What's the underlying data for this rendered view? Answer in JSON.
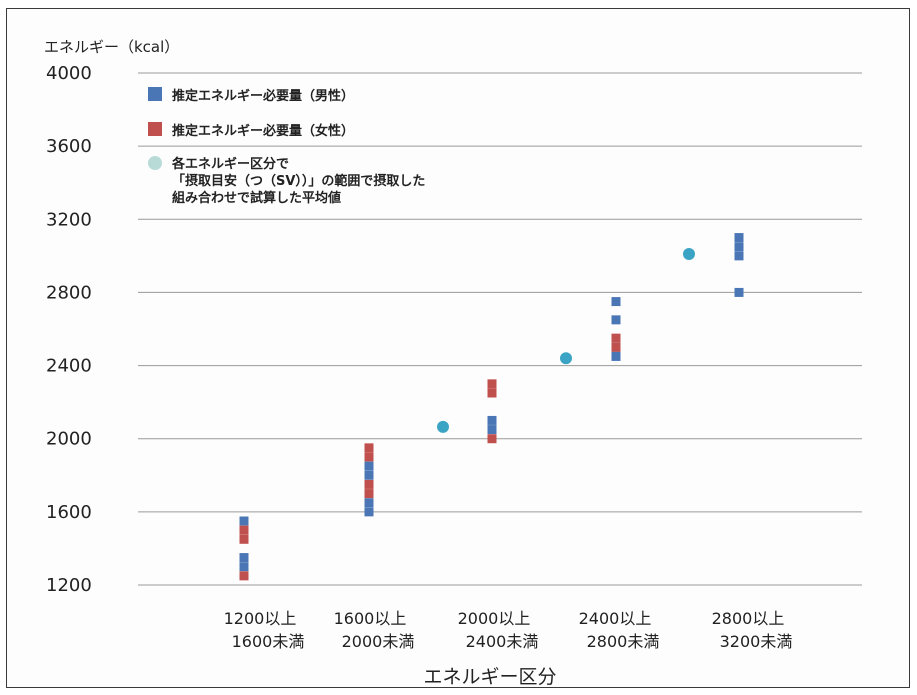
{
  "chart_data": {
    "type": "scatter",
    "ylabel": "エネルギー（kcal）",
    "xlabel": "エネルギー区分",
    "ylim": [
      1200,
      4000
    ],
    "yticks": [
      1200,
      1600,
      2000,
      2400,
      2800,
      3200,
      3600,
      4000
    ],
    "grid": true,
    "legend_position": "top-left",
    "categories": [
      [
        "1200以上",
        "1600未満"
      ],
      [
        "1600以上",
        "2000未満"
      ],
      [
        "2000以上",
        "2400未満"
      ],
      [
        "2400以上",
        "2800未満"
      ],
      [
        "2800以上",
        "3200未満"
      ]
    ],
    "series": [
      {
        "name": "推定エネルギー必要量（男性）",
        "color": "#4a76b5",
        "marker": "square",
        "points": [
          {
            "cat": 0,
            "values": [
              1550,
              1350,
              1300
            ]
          },
          {
            "cat": 1,
            "values": [
              1850,
              1800,
              1650,
              1600
            ]
          },
          {
            "cat": 2,
            "values": [
              2100,
              2050
            ]
          },
          {
            "cat": 3,
            "values": [
              2750,
              2650,
              2500,
              2450
            ]
          },
          {
            "cat": 4,
            "values": [
              3100,
              3050,
              3000,
              2800
            ]
          }
        ]
      },
      {
        "name": "推定エネルギー必要量（女性）",
        "color": "#c0504d",
        "marker": "square",
        "points": [
          {
            "cat": 0,
            "values": [
              1500,
              1450,
              1250
            ]
          },
          {
            "cat": 1,
            "values": [
              1950,
              1900,
              1750,
              1700
            ]
          },
          {
            "cat": 2,
            "values": [
              2300,
              2250,
              2000
            ]
          },
          {
            "cat": 3,
            "values": [
              2550,
              2500
            ]
          }
        ]
      },
      {
        "name": [
          "各エネルギー区分で",
          "「摂取目安（つ（SV））」の範囲で摂取した",
          "組み合わせで試算した平均値"
        ],
        "color": "#3ba3c3",
        "marker": "circle",
        "points": [
          {
            "cat": 2,
            "values": [
              2065
            ]
          },
          {
            "cat": 3,
            "values": [
              2440
            ]
          },
          {
            "cat": 4,
            "values": [
              3010
            ]
          }
        ]
      }
    ]
  }
}
